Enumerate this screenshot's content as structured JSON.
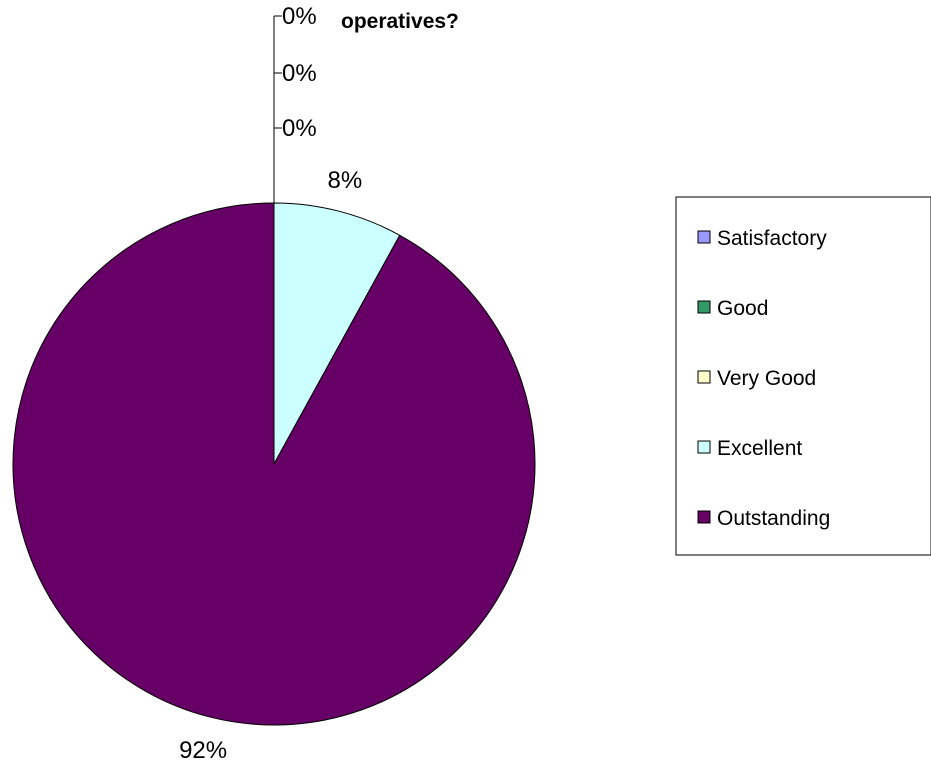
{
  "chart_data": {
    "type": "pie",
    "title": "operatives?",
    "categories": [
      "Satisfactory",
      "Good",
      "Very Good",
      "Excellent",
      "Outstanding"
    ],
    "values": [
      0,
      0,
      0,
      8,
      92
    ],
    "value_labels": [
      "0%",
      "0%",
      "0%",
      "8%",
      "92%"
    ],
    "colors": [
      "#9999ff",
      "#339966",
      "#ffffcc",
      "#ccffff",
      "#660066"
    ],
    "legend": {
      "position": "right",
      "entries": [
        "Satisfactory",
        "Good",
        "Very Good",
        "Excellent",
        "Outstanding"
      ]
    }
  }
}
